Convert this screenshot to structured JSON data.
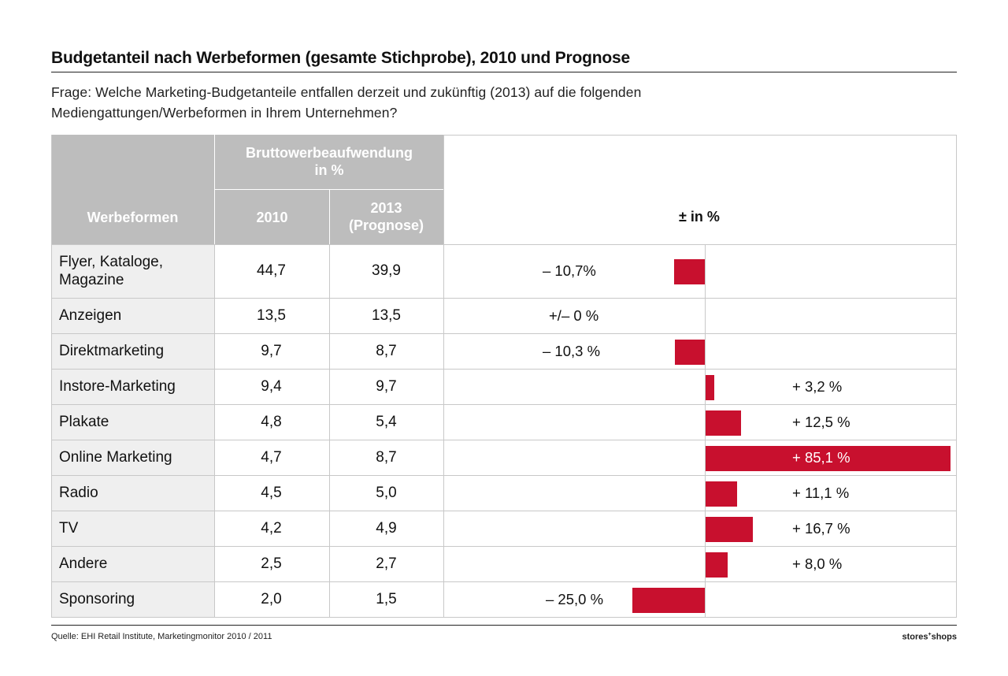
{
  "title": "Budgetanteil nach Werbeformen (gesamte Stichprobe), 2010 und Prognose",
  "question": "Frage: Welche Marketing-Budgetanteile entfallen derzeit und zukünftig (2013) auf die folgenden Mediengattungen/Werbeformen in Ihrem Unternehmen?",
  "headers": {
    "werbeformen": "Werbeformen",
    "brutto_line1": "Bruttowerbeaufwendung",
    "brutto_line2": "in %",
    "y2010": "2010",
    "y2013_line1": "2013",
    "y2013_line2": "(Prognose)",
    "change": "± in %"
  },
  "footer": {
    "source": "Quelle: EHI Retail Institute, Marketingmonitor 2010 / 2011",
    "brand_left": "stores",
    "brand_sup": "+",
    "brand_right": "shops"
  },
  "colors": {
    "bar": "#c8102e",
    "header_gray": "#bdbdbd",
    "label_bg": "#efefef"
  },
  "chart_data": {
    "type": "table",
    "columns": [
      "Werbeformen",
      "2010",
      "2013 (Prognose)",
      "± in %"
    ],
    "rows": [
      {
        "label_lines": [
          "Flyer, Kataloge,",
          "Magazine"
        ],
        "v2010": "44,7",
        "v2013": "39,9",
        "change_label": "– 10,7%",
        "change": -10.7
      },
      {
        "label_lines": [
          "Anzeigen"
        ],
        "v2010": "13,5",
        "v2013": "13,5",
        "change_label": "+/– 0 %",
        "change": 0
      },
      {
        "label_lines": [
          "Direktmarketing"
        ],
        "v2010": "9,7",
        "v2013": "8,7",
        "change_label": "– 10,3 %",
        "change": -10.3
      },
      {
        "label_lines": [
          "Instore-Marketing"
        ],
        "v2010": "9,4",
        "v2013": "9,7",
        "change_label": "+ 3,2 %",
        "change": 3.2
      },
      {
        "label_lines": [
          "Plakate"
        ],
        "v2010": "4,8",
        "v2013": "5,4",
        "change_label": "+ 12,5 %",
        "change": 12.5
      },
      {
        "label_lines": [
          "Online Marketing"
        ],
        "v2010": "4,7",
        "v2013": "8,7",
        "change_label": "+ 85,1 %",
        "change": 85.1
      },
      {
        "label_lines": [
          "Radio"
        ],
        "v2010": "4,5",
        "v2013": "5,0",
        "change_label": "+ 11,1 %",
        "change": 11.1
      },
      {
        "label_lines": [
          "TV"
        ],
        "v2010": "4,2",
        "v2013": "4,9",
        "change_label": "+ 16,7 %",
        "change": 16.7
      },
      {
        "label_lines": [
          "Andere"
        ],
        "v2010": "2,5",
        "v2013": "2,7",
        "change_label": "+ 8,0 %",
        "change": 8.0
      },
      {
        "label_lines": [
          "Sponsoring"
        ],
        "v2010": "2,0",
        "v2013": "1,5",
        "change_label": "– 25,0 %",
        "change": -25.0
      }
    ]
  }
}
